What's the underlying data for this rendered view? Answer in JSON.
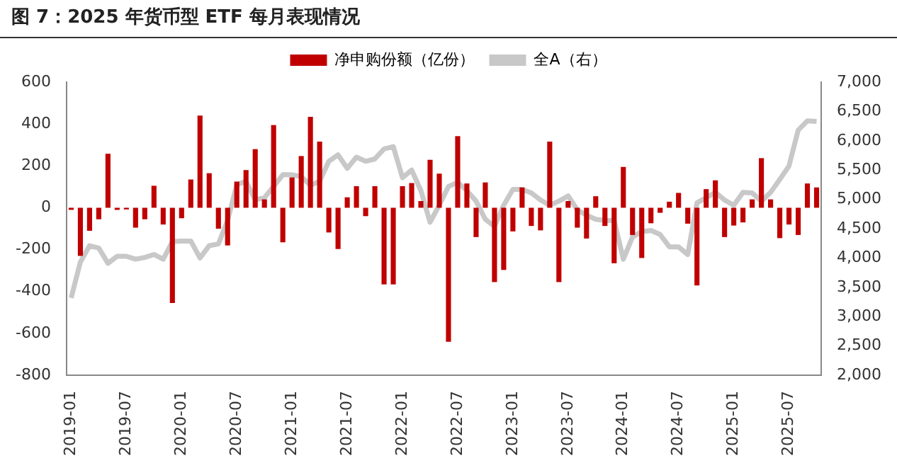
{
  "chart_data": {
    "type": "bar",
    "title": "图 7：2025 年货币型 ETF 每月表现情况",
    "categories": [
      "2019-01",
      null,
      null,
      null,
      null,
      null,
      "2019-07",
      null,
      null,
      null,
      null,
      null,
      "2020-01",
      null,
      null,
      null,
      null,
      null,
      "2020-07",
      null,
      null,
      null,
      null,
      null,
      "2021-01",
      null,
      null,
      null,
      null,
      null,
      "2021-07",
      null,
      null,
      null,
      null,
      null,
      "2022-01",
      null,
      null,
      null,
      null,
      null,
      "2022-07",
      null,
      null,
      null,
      null,
      null,
      "2023-01",
      null,
      null,
      null,
      null,
      null,
      "2023-07",
      null,
      null,
      null,
      null,
      null,
      "2024-01",
      null,
      null,
      null,
      null,
      null,
      "2024-07",
      null,
      null,
      null,
      null,
      null,
      "2025-01",
      null,
      null,
      null,
      null,
      null,
      "2025-07",
      null,
      null,
      null
    ],
    "series": [
      {
        "name": "净申购份额（亿份）",
        "color": "#c00000",
        "values": [
          -10,
          -230,
          -110,
          -55,
          258,
          -10,
          -8,
          -95,
          -55,
          105,
          -80,
          -455,
          -50,
          135,
          440,
          165,
          -100,
          -180,
          125,
          180,
          280,
          40,
          395,
          -165,
          145,
          247,
          434,
          316,
          -118,
          -197,
          50,
          103,
          -40,
          103,
          -366,
          -366,
          103,
          118,
          32,
          229,
          163,
          -640,
          342,
          116,
          -140,
          121,
          -355,
          -297,
          -113,
          97,
          -87,
          -108,
          316,
          -355,
          32,
          -95,
          -147,
          55,
          -87,
          -265,
          195,
          -130,
          -240,
          -74,
          -24,
          29,
          71,
          -76,
          -371,
          89,
          131,
          -140,
          -85,
          -70,
          40,
          237,
          40,
          -145,
          -80,
          -130,
          116,
          97
        ]
      },
      {
        "name": "全A（右）",
        "type": "line",
        "axis": "y2",
        "color": "#c8c8c8",
        "values": [
          3320,
          3930,
          4210,
          4170,
          3910,
          4030,
          4030,
          3980,
          4010,
          4060,
          3980,
          4280,
          4290,
          4290,
          4000,
          4210,
          4240,
          4640,
          5250,
          5310,
          4990,
          5030,
          5220,
          5420,
          5420,
          5390,
          5240,
          5310,
          5650,
          5760,
          5530,
          5720,
          5650,
          5690,
          5860,
          5900,
          5370,
          5500,
          5150,
          4610,
          4900,
          5220,
          5290,
          5150,
          4970,
          4660,
          4540,
          4900,
          5170,
          5170,
          5110,
          4990,
          4900,
          4970,
          5060,
          4820,
          4730,
          4660,
          4640,
          4640,
          3980,
          4360,
          4450,
          4470,
          4400,
          4190,
          4190,
          4060,
          4940,
          5030,
          5120,
          4990,
          4900,
          5120,
          5110,
          4970,
          5120,
          5340,
          5570,
          6180,
          6340,
          6330
        ]
      }
    ],
    "ylim": [
      -800,
      600
    ],
    "yticks": [
      -800,
      -600,
      -400,
      -200,
      0,
      200,
      400,
      600
    ],
    "y2lim": [
      2000,
      7000
    ],
    "y2ticks": [
      {
        "value": 2000,
        "label": "2,000"
      },
      {
        "value": 2500,
        "label": "2,500"
      },
      {
        "value": 3000,
        "label": "3,000"
      },
      {
        "value": 3500,
        "label": "3,500"
      },
      {
        "value": 4000,
        "label": "4,000"
      },
      {
        "value": 4500,
        "label": "4,500"
      },
      {
        "value": 5000,
        "label": "5,000"
      },
      {
        "value": 5500,
        "label": "5,500"
      },
      {
        "value": 6000,
        "label": "6,000"
      },
      {
        "value": 6500,
        "label": "6,500"
      },
      {
        "value": 7000,
        "label": "7,000"
      }
    ],
    "legend": "top",
    "grid": false,
    "marker": "none"
  }
}
